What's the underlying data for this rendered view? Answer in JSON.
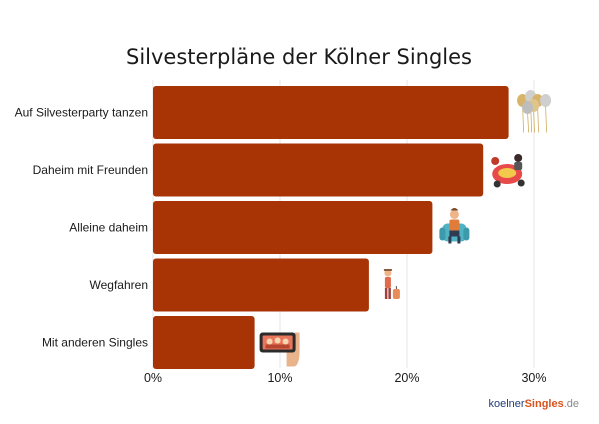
{
  "chart_data": {
    "type": "bar",
    "orientation": "horizontal",
    "title": "Silvesterpläne der Kölner Singles",
    "categories": [
      "Auf Silvesterparty tanzen",
      "Daheim mit Freunden",
      "Alleine daheim",
      "Wegfahren",
      "Mit anderen Singles"
    ],
    "values": [
      28,
      26,
      22,
      17,
      8
    ],
    "unit": "%",
    "xlim": [
      0,
      35
    ],
    "xticks": [
      "0%",
      "10%",
      "20%",
      "30%"
    ],
    "grid": true,
    "bar_color": "#a83305",
    "icons": [
      "balloons-icon",
      "friends-dinner-icon",
      "armchair-person-icon",
      "traveler-suitcase-icon",
      "smartphone-hand-icon"
    ]
  },
  "branding": {
    "logo_part1": "koelner",
    "logo_part2": "Singles",
    "logo_part3": ".de"
  }
}
